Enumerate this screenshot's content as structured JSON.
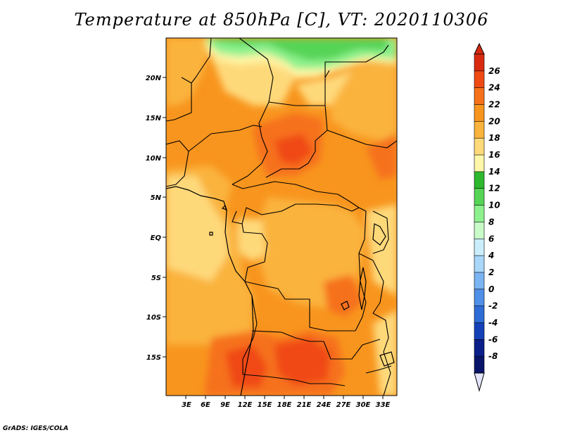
{
  "title": "Temperature at 850hPa [C], VT: 2020110306",
  "credit": "GrADS: IGES/COLA",
  "lat_labels": [
    "20N",
    "15N",
    "10N",
    "5N",
    "EQ",
    "5S",
    "10S",
    "15S"
  ],
  "lon_labels": [
    "3E",
    "6E",
    "9E",
    "12E",
    "15E",
    "18E",
    "21E",
    "24E",
    "27E",
    "30E",
    "33E"
  ],
  "colorbar": {
    "labels": [
      "26",
      "24",
      "22",
      "20",
      "18",
      "16",
      "14",
      "12",
      "10",
      "8",
      "6",
      "4",
      "2",
      "0",
      "-2",
      "-4",
      "-6",
      "-8"
    ],
    "colors": [
      "#d92a10",
      "#f04a14",
      "#f6711a",
      "#f8951e",
      "#fab33c",
      "#fed97a",
      "#fef6a8",
      "#2db82d",
      "#56d456",
      "#8ef18e",
      "#c9fbc9",
      "#cbeefc",
      "#a8d7fa",
      "#7ab4f2",
      "#4f8fe8",
      "#2d6cd6",
      "#1541b8",
      "#0a1f8a",
      "#081468"
    ],
    "cap_top_color": "#d42a10",
    "cap_bottom_color": "#e3e4fc"
  }
}
